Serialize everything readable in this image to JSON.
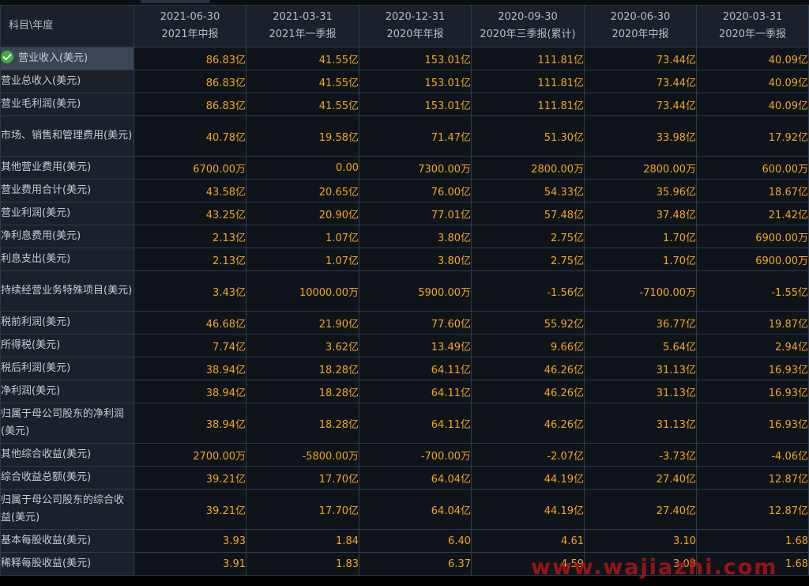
{
  "header": {
    "label": "科目\\年度",
    "columns": [
      {
        "date": "2021-06-30",
        "period": "2021年中报"
      },
      {
        "date": "2021-03-31",
        "period": "2021年一季报"
      },
      {
        "date": "2020-12-31",
        "period": "2020年年报"
      },
      {
        "date": "2020-09-30",
        "period": "2020年三季报(累计)"
      },
      {
        "date": "2020-06-30",
        "period": "2020年中报"
      },
      {
        "date": "2020-03-31",
        "period": "2020年一季报"
      }
    ]
  },
  "rows": [
    {
      "label": "营业收入(美元)",
      "values": [
        "86.83亿",
        "41.55亿",
        "153.01亿",
        "111.81亿",
        "73.44亿",
        "40.09亿"
      ]
    },
    {
      "label": "营业总收入(美元)",
      "values": [
        "86.83亿",
        "41.55亿",
        "153.01亿",
        "111.81亿",
        "73.44亿",
        "40.09亿"
      ]
    },
    {
      "label": "营业毛利润(美元)",
      "values": [
        "86.83亿",
        "41.55亿",
        "153.01亿",
        "111.81亿",
        "73.44亿",
        "40.09亿"
      ]
    },
    {
      "label": "市场、销售和管理费用(美元)",
      "values": [
        "40.78亿",
        "19.58亿",
        "71.47亿",
        "51.30亿",
        "33.98亿",
        "17.92亿"
      ]
    },
    {
      "label": "其他营业费用(美元)",
      "values": [
        "6700.00万",
        "0.00",
        "7300.00万",
        "2800.00万",
        "2800.00万",
        "600.00万"
      ]
    },
    {
      "label": "营业费用合计(美元)",
      "values": [
        "43.58亿",
        "20.65亿",
        "76.00亿",
        "54.33亿",
        "35.96亿",
        "18.67亿"
      ]
    },
    {
      "label": "营业利润(美元)",
      "values": [
        "43.25亿",
        "20.90亿",
        "77.01亿",
        "57.48亿",
        "37.48亿",
        "21.42亿"
      ]
    },
    {
      "label": "净利息费用(美元)",
      "values": [
        "2.13亿",
        "1.07亿",
        "3.80亿",
        "2.75亿",
        "1.70亿",
        "6900.00万"
      ]
    },
    {
      "label": "利息支出(美元)",
      "values": [
        "2.13亿",
        "1.07亿",
        "3.80亿",
        "2.75亿",
        "1.70亿",
        "6900.00万"
      ]
    },
    {
      "label": "持续经营业务特殊项目(美元)",
      "values": [
        "3.43亿",
        "10000.00万",
        "5900.00万",
        "-1.56亿",
        "-7100.00万",
        "-1.55亿"
      ]
    },
    {
      "label": "税前利润(美元)",
      "values": [
        "46.68亿",
        "21.90亿",
        "77.60亿",
        "55.92亿",
        "36.77亿",
        "19.87亿"
      ]
    },
    {
      "label": "所得税(美元)",
      "values": [
        "7.74亿",
        "3.62亿",
        "13.49亿",
        "9.66亿",
        "5.64亿",
        "2.94亿"
      ]
    },
    {
      "label": "税后利润(美元)",
      "values": [
        "38.94亿",
        "18.28亿",
        "64.11亿",
        "46.26亿",
        "31.13亿",
        "16.93亿"
      ]
    },
    {
      "label": "净利润(美元)",
      "values": [
        "38.94亿",
        "18.28亿",
        "64.11亿",
        "46.26亿",
        "31.13亿",
        "16.93亿"
      ]
    },
    {
      "label": "归属于母公司股东的净利润(美元)",
      "values": [
        "38.94亿",
        "18.28亿",
        "64.11亿",
        "46.26亿",
        "31.13亿",
        "16.93亿"
      ]
    },
    {
      "label": "其他综合收益(美元)",
      "values": [
        "2700.00万",
        "-5800.00万",
        "-700.00万",
        "-2.07亿",
        "-3.73亿",
        "-4.06亿"
      ]
    },
    {
      "label": "综合收益总额(美元)",
      "values": [
        "39.21亿",
        "17.70亿",
        "64.04亿",
        "44.19亿",
        "27.40亿",
        "12.87亿"
      ]
    },
    {
      "label": "归属于母公司股东的综合收益(美元)",
      "values": [
        "39.21亿",
        "17.70亿",
        "64.04亿",
        "44.19亿",
        "27.40亿",
        "12.87亿"
      ]
    },
    {
      "label": "基本每股收益(美元)",
      "values": [
        "3.93",
        "1.84",
        "6.40",
        "4.61",
        "3.10",
        "1.68"
      ]
    },
    {
      "label": "稀释每股收益(美元)",
      "values": [
        "3.91",
        "1.83",
        "6.37",
        "4.59",
        "3.08",
        "1.68"
      ]
    }
  ],
  "selected_row_icon": "check-circle-icon",
  "watermark": "www.wajiazhi.com"
}
